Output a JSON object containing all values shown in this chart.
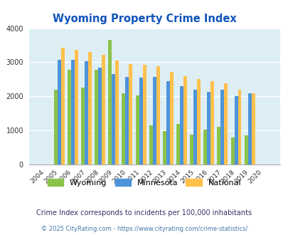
{
  "title": "Wyoming Property Crime Index",
  "years": [
    2004,
    2005,
    2006,
    2007,
    2008,
    2009,
    2010,
    2011,
    2012,
    2013,
    2014,
    2015,
    2016,
    2017,
    2018,
    2019,
    2020
  ],
  "wyoming": [
    0,
    2200,
    2775,
    2250,
    2775,
    3650,
    2100,
    2025,
    1150,
    975,
    1200,
    875,
    1025,
    1100,
    800,
    850,
    0
  ],
  "minnesota": [
    0,
    3075,
    3075,
    3025,
    2850,
    2650,
    2575,
    2550,
    2575,
    2450,
    2300,
    2200,
    2125,
    2200,
    2000,
    2100,
    0
  ],
  "national": [
    0,
    3425,
    3375,
    3300,
    3225,
    3050,
    2950,
    2925,
    2875,
    2725,
    2600,
    2500,
    2450,
    2375,
    2200,
    2100,
    0
  ],
  "wyoming_color": "#8bc34a",
  "minnesota_color": "#4d94db",
  "national_color": "#ffc04c",
  "bg_color": "#ddeef5",
  "ylim": [
    0,
    4000
  ],
  "yticks": [
    0,
    1000,
    2000,
    3000,
    4000
  ],
  "subtitle": "Crime Index corresponds to incidents per 100,000 inhabitants",
  "footer": "© 2025 CityRating.com - https://www.cityrating.com/crime-statistics/",
  "title_color": "#1155bb",
  "subtitle_color": "#333366",
  "footer_color": "#4477aa"
}
